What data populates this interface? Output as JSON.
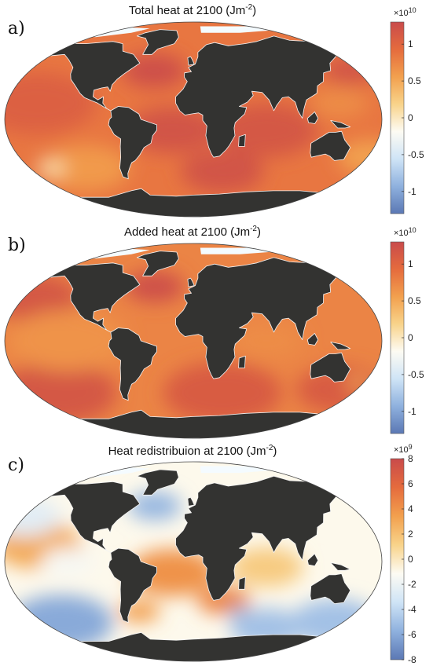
{
  "colors": {
    "land": "#333331",
    "ice": "#f4fbff",
    "colormap": [
      "#5b78b4",
      "#8fb1de",
      "#cfe4f6",
      "#fdfbf3",
      "#f8d38a",
      "#f2a04e",
      "#e56b3d",
      "#c94b4b"
    ]
  },
  "chart_data": [
    {
      "type": "heatmap",
      "panel_label": "a)",
      "title_main": "Total heat at 2100 (Jm",
      "title_sup": "-2",
      "title_end": ")",
      "colorbar": {
        "exponent_base": "×10",
        "exponent_power": "10",
        "range": [
          -1.3,
          1.3
        ],
        "ticks": [
          1,
          0.5,
          0,
          -0.5,
          -1
        ],
        "tick_labels": [
          "1",
          "0.5",
          "0",
          "-0.5",
          "-1"
        ]
      },
      "ocean_base_value": 0.85,
      "regions": [
        {
          "lon": -40,
          "lat": 45,
          "value": 1.25,
          "size": 22
        },
        {
          "lon": -150,
          "lat": 15,
          "value": 1.05,
          "size": 40
        },
        {
          "lon": 70,
          "lat": -10,
          "value": 1.15,
          "size": 35
        },
        {
          "lon": -20,
          "lat": -10,
          "value": 1.2,
          "size": 30
        },
        {
          "lon": 30,
          "lat": -48,
          "value": 1.2,
          "size": 28
        },
        {
          "lon": 160,
          "lat": 45,
          "value": 1.2,
          "size": 18
        },
        {
          "lon": -110,
          "lat": -45,
          "value": 0.6,
          "size": 30
        },
        {
          "lon": -145,
          "lat": -45,
          "value": 0.05,
          "size": 10
        },
        {
          "lon": 175,
          "lat": -35,
          "value": 0.55,
          "size": 22
        },
        {
          "lon": 140,
          "lat": 15,
          "value": 0.7,
          "size": 20
        }
      ]
    },
    {
      "type": "heatmap",
      "panel_label": "b)",
      "title_main": "Added heat at 2100 (Jm",
      "title_sup": "-2",
      "title_end": ")",
      "colorbar": {
        "exponent_base": "×10",
        "exponent_power": "10",
        "range": [
          -1.3,
          1.3
        ],
        "ticks": [
          1,
          0.5,
          0,
          -0.5,
          -1
        ],
        "tick_labels": [
          "1",
          "0.5",
          "0",
          "-0.5",
          "-1"
        ]
      },
      "ocean_base_value": 0.75,
      "regions": [
        {
          "lon": -40,
          "lat": 50,
          "value": 1.25,
          "size": 20
        },
        {
          "lon": -160,
          "lat": 40,
          "value": 1.15,
          "size": 30
        },
        {
          "lon": -140,
          "lat": -48,
          "value": 1.15,
          "size": 40
        },
        {
          "lon": 30,
          "lat": -48,
          "value": 1.1,
          "size": 40
        },
        {
          "lon": 150,
          "lat": -45,
          "value": 1.1,
          "size": 30
        },
        {
          "lon": -120,
          "lat": 0,
          "value": 0.65,
          "size": 40
        },
        {
          "lon": 70,
          "lat": 0,
          "value": 0.7,
          "size": 25
        },
        {
          "lon": 165,
          "lat": -40,
          "value": 0.5,
          "size": 8
        }
      ]
    },
    {
      "type": "heatmap",
      "panel_label": "c)",
      "title_main": "Heat redistribuion at 2100 (Jm",
      "title_sup": "-2",
      "title_end": ")",
      "colorbar": {
        "exponent_base": "×10",
        "exponent_power": "9",
        "range": [
          -8,
          8
        ],
        "ticks": [
          8,
          6,
          4,
          2,
          0,
          -2,
          -4,
          -6,
          -8
        ],
        "tick_labels": [
          "8",
          "6",
          "4",
          "2",
          "0",
          "-2",
          "-4",
          "-6",
          "-8"
        ]
      },
      "ocean_base_value": -1.0,
      "regions": [
        {
          "lon": -150,
          "lat": 15,
          "value": 3.0,
          "size": 30
        },
        {
          "lon": -20,
          "lat": -10,
          "value": 4.0,
          "size": 30
        },
        {
          "lon": 30,
          "lat": -35,
          "value": 4.5,
          "size": 18
        },
        {
          "lon": -55,
          "lat": -45,
          "value": 3.5,
          "size": 14
        },
        {
          "lon": 70,
          "lat": -5,
          "value": 1.5,
          "size": 25
        },
        {
          "lon": -40,
          "lat": 50,
          "value": -5.5,
          "size": 18
        },
        {
          "lon": -140,
          "lat": -55,
          "value": -6.0,
          "size": 35
        },
        {
          "lon": 150,
          "lat": -55,
          "value": -5.0,
          "size": 30
        },
        {
          "lon": 80,
          "lat": -60,
          "value": -5.0,
          "size": 25
        },
        {
          "lon": -170,
          "lat": 40,
          "value": -2.5,
          "size": 25
        },
        {
          "lon": 160,
          "lat": 40,
          "value": -1.0,
          "size": 15
        },
        {
          "lon": 45,
          "lat": -45,
          "value": -6.0,
          "size": 6
        },
        {
          "lon": 25,
          "lat": 35,
          "value": 6.0,
          "size": 8
        },
        {
          "lon": -120,
          "lat": 0,
          "value": -1.5,
          "size": 18
        }
      ]
    }
  ]
}
